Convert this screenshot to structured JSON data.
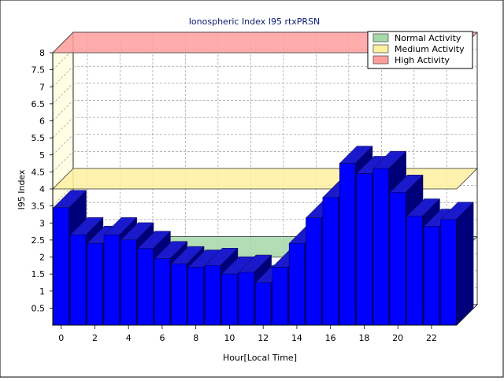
{
  "chart_data": {
    "type": "bar",
    "title": "Ionospheric Index I95 rtxPRSN",
    "xlabel": "Hour[Local Time]",
    "ylabel": "I95 Index",
    "ylim": [
      0,
      8
    ],
    "y_ticks": [
      "0.5",
      "1",
      "1.5",
      "2",
      "2.5",
      "3",
      "3.5",
      "4",
      "4.5",
      "5",
      "5.5",
      "6",
      "6.5",
      "7",
      "7.5",
      "8"
    ],
    "x_ticks": [
      "0",
      "2",
      "4",
      "6",
      "8",
      "10",
      "12",
      "14",
      "16",
      "18",
      "20",
      "22"
    ],
    "x_tick_hours": [
      0,
      2,
      4,
      6,
      8,
      10,
      12,
      14,
      16,
      18,
      20,
      22
    ],
    "hours": [
      0,
      1,
      2,
      3,
      4,
      5,
      6,
      7,
      8,
      9,
      10,
      11,
      12,
      13,
      14,
      15,
      16,
      17,
      18,
      19,
      20,
      21,
      22,
      23
    ],
    "values": [
      3.45,
      2.65,
      2.4,
      2.65,
      2.5,
      2.25,
      1.95,
      1.8,
      1.7,
      1.75,
      1.5,
      1.55,
      1.25,
      1.7,
      2.4,
      3.15,
      3.75,
      4.75,
      4.45,
      4.6,
      3.9,
      3.2,
      2.9,
      3.1
    ],
    "bands": [
      {
        "name": "Normal Activity",
        "y": 2.0,
        "color": "#a6d8a8"
      },
      {
        "name": "Medium Activity",
        "y": 4.0,
        "color": "#fff0a0"
      },
      {
        "name": "High Activity",
        "y": 8.0,
        "color": "#ff9d9d"
      }
    ],
    "legend_position": "top-right",
    "grid": true,
    "colors": {
      "bar_front": "#0000ff",
      "bar_top": "#1a1acc",
      "bar_side": "#00007a",
      "wall": "#fffde4",
      "grid": "#a0a0a0"
    }
  }
}
